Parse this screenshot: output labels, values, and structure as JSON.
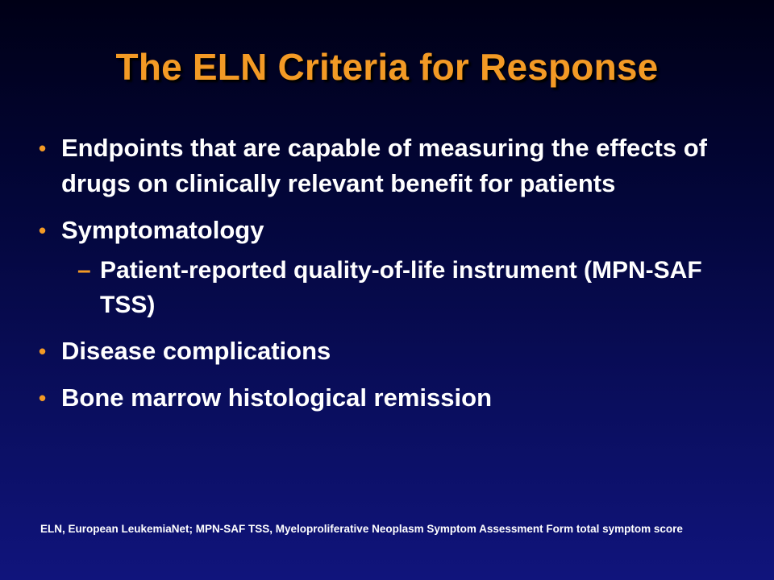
{
  "slide": {
    "title": "The ELN Criteria for Response",
    "bullet_marker": "•",
    "sub_marker": "–",
    "bullets": [
      {
        "text": "Endpoints that are capable of measuring the effects of drugs on clinically relevant benefit for patients"
      },
      {
        "text": "Symptomatology",
        "sub": [
          "Patient-reported quality-of-life instrument (MPN-SAF TSS)"
        ]
      },
      {
        "text": "Disease complications"
      },
      {
        "text": "Bone marrow histological remission"
      }
    ],
    "footnote": "ELN, European LeukemiaNet; MPN-SAF TSS, Myeloproliferative Neoplasm Symptom Assessment Form total symptom score"
  },
  "colors": {
    "background_top": "#000016",
    "background_bottom": "#10147c",
    "title": "#f39a25",
    "bullet_marker": "#f39a25",
    "text": "#ffffff"
  }
}
